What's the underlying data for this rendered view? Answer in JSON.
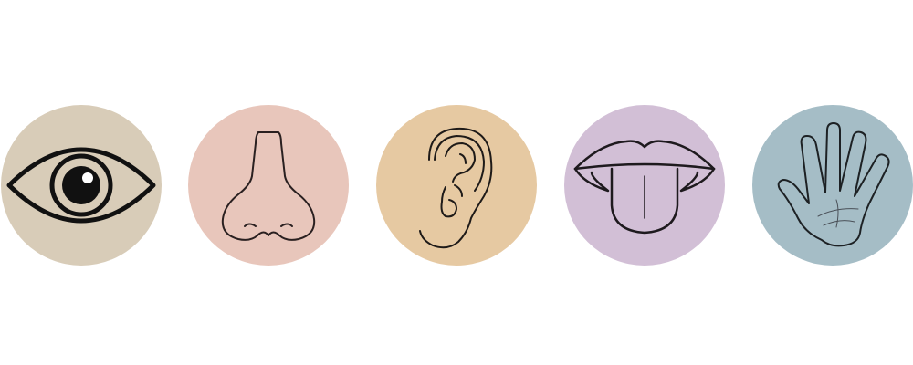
{
  "senses": [
    {
      "icon": "eye-icon",
      "color": "#d8ccb8"
    },
    {
      "icon": "nose-icon",
      "color": "#e8c6bb"
    },
    {
      "icon": "ear-icon",
      "color": "#e6c9a2"
    },
    {
      "icon": "tongue-icon",
      "color": "#d2bfd6"
    },
    {
      "icon": "hand-icon",
      "color": "#a5bdc6"
    }
  ]
}
